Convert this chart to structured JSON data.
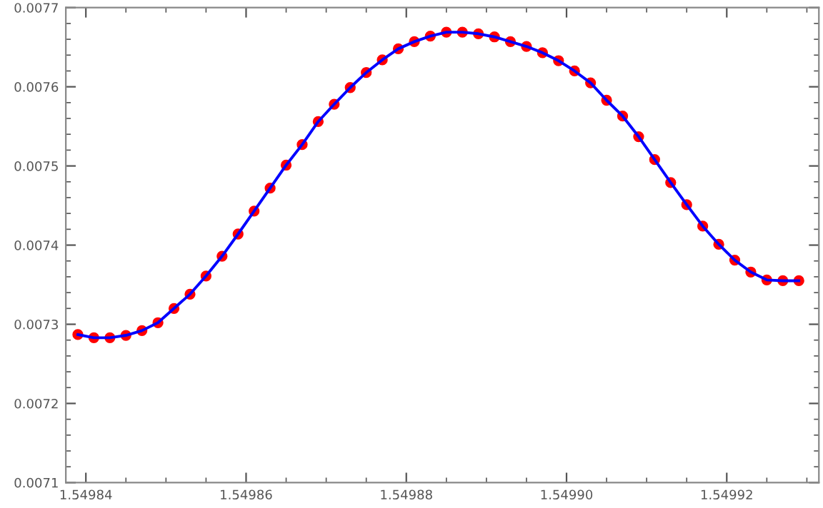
{
  "chart_data": {
    "type": "line",
    "x": [
      1.549839,
      1.549841,
      1.549843,
      1.549845,
      1.549847,
      1.549849,
      1.549851,
      1.549853,
      1.549855,
      1.549857,
      1.549859,
      1.549861,
      1.549863,
      1.549865,
      1.549867,
      1.549869,
      1.549871,
      1.549873,
      1.549875,
      1.549877,
      1.549879,
      1.549881,
      1.549883,
      1.549885,
      1.549887,
      1.549889,
      1.549891,
      1.549893,
      1.549895,
      1.549897,
      1.549899,
      1.549901,
      1.549903,
      1.549905,
      1.549907,
      1.549909,
      1.549911,
      1.549913,
      1.549915,
      1.549917,
      1.549919,
      1.549921,
      1.549923,
      1.549925,
      1.549927,
      1.549929
    ],
    "series": [
      {
        "type": "scatter",
        "color": "#ff0000",
        "marker": "circle",
        "values": [
          0.007287,
          0.007283,
          0.007283,
          0.007286,
          0.007292,
          0.007302,
          0.00732,
          0.007338,
          0.007361,
          0.007386,
          0.007414,
          0.007443,
          0.007472,
          0.007501,
          0.007527,
          0.007556,
          0.007578,
          0.007599,
          0.007618,
          0.007634,
          0.007648,
          0.007657,
          0.007664,
          0.007669,
          0.007669,
          0.007667,
          0.007663,
          0.007657,
          0.007651,
          0.007643,
          0.007633,
          0.00762,
          0.007605,
          0.007583,
          0.007563,
          0.007537,
          0.007508,
          0.007479,
          0.007451,
          0.007424,
          0.007401,
          0.007381,
          0.007366,
          0.007356,
          0.007355,
          0.007355
        ]
      },
      {
        "color": "#0000ff",
        "line_style": "solid",
        "values": [
          0.007287,
          0.007283,
          0.007283,
          0.007286,
          0.007292,
          0.007302,
          0.00732,
          0.007338,
          0.007361,
          0.007386,
          0.007414,
          0.007443,
          0.007472,
          0.007501,
          0.007527,
          0.007556,
          0.007578,
          0.007599,
          0.007618,
          0.007634,
          0.007648,
          0.007657,
          0.007664,
          0.007669,
          0.007669,
          0.007667,
          0.007663,
          0.007657,
          0.007651,
          0.007643,
          0.007633,
          0.00762,
          0.007605,
          0.007583,
          0.007563,
          0.007537,
          0.007508,
          0.007479,
          0.007451,
          0.007424,
          0.007401,
          0.007381,
          0.007366,
          0.007356,
          0.007355,
          0.007355
        ]
      }
    ],
    "xlim": [
      1.5498375,
      1.5499315
    ],
    "ylim": [
      0.0071,
      0.0077
    ],
    "xticks": [
      1.54984,
      1.54986,
      1.54988,
      {
        "value": 1.5499,
        "label": "1.54990"
      },
      1.54992
    ],
    "yticks": [
      0.0071,
      0.0072,
      0.0073,
      0.0074,
      0.0075,
      0.0076,
      0.0077
    ],
    "grid": false,
    "legend": false
  }
}
